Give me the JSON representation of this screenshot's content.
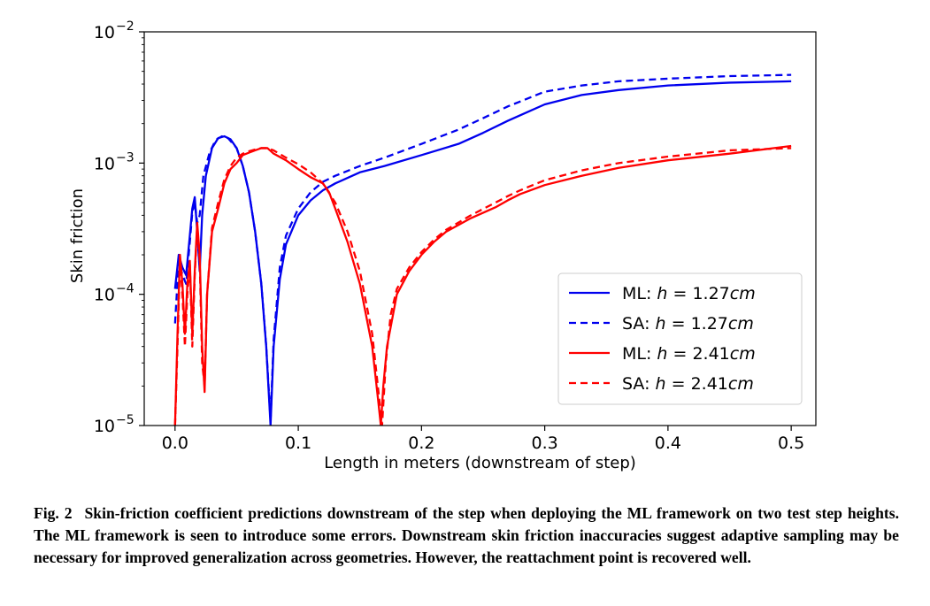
{
  "figure": {
    "caption_label": "Fig. 2",
    "caption_text": "Skin-friction coefficient predictions downstream of the step when deploying the ML framework on two test step heights. The ML framework is seen to introduce some errors. Downstream skin friction inaccuracies suggest adaptive sampling may be necessary for improved generalization across geometries. However, the reattachment point is recovered well."
  },
  "chart_data": {
    "type": "line",
    "title": "",
    "xlabel": "Length in meters (downstream of step)",
    "ylabel": "Skin friction",
    "xlim": [
      -0.025,
      0.52
    ],
    "ylim": [
      1e-05,
      0.01
    ],
    "yscale": "log",
    "x_ticks": [
      {
        "value": 0.0,
        "label": "0.0"
      },
      {
        "value": 0.1,
        "label": "0.1"
      },
      {
        "value": 0.2,
        "label": "0.2"
      },
      {
        "value": 0.3,
        "label": "0.3"
      },
      {
        "value": 0.4,
        "label": "0.4"
      },
      {
        "value": 0.5,
        "label": "0.5"
      }
    ],
    "y_ticks": [
      {
        "value": 1e-05,
        "base": "10",
        "exp": "−5"
      },
      {
        "value": 0.0001,
        "base": "10",
        "exp": "−4"
      },
      {
        "value": 0.001,
        "base": "10",
        "exp": "−3"
      },
      {
        "value": 0.01,
        "base": "10",
        "exp": "−2"
      }
    ],
    "grid": false,
    "legend_position": "lower-right",
    "series": [
      {
        "name": "ML: h = 1.27cm",
        "legend_prefix": "ML: ",
        "legend_var": "h",
        "legend_value": " = 1.27",
        "legend_unit": "cm",
        "color": "#0000ee",
        "dash": "solid",
        "points": [
          [
            0.0,
            0.00011
          ],
          [
            0.003,
            0.0002
          ],
          [
            0.006,
            0.00016
          ],
          [
            0.009,
            0.00014
          ],
          [
            0.012,
            0.00028
          ],
          [
            0.014,
            0.00045
          ],
          [
            0.016,
            0.00055
          ],
          [
            0.018,
            0.0003
          ],
          [
            0.02,
            0.00015
          ],
          [
            0.022,
            0.0004
          ],
          [
            0.025,
            0.0008
          ],
          [
            0.03,
            0.0013
          ],
          [
            0.035,
            0.00155
          ],
          [
            0.04,
            0.0016
          ],
          [
            0.045,
            0.00152
          ],
          [
            0.05,
            0.0013
          ],
          [
            0.055,
            0.00095
          ],
          [
            0.06,
            0.0006
          ],
          [
            0.065,
            0.0003
          ],
          [
            0.07,
            0.00012
          ],
          [
            0.074,
            4e-05
          ],
          [
            0.0775,
            1e-05
          ],
          [
            0.08,
            4e-05
          ],
          [
            0.085,
            0.00013
          ],
          [
            0.09,
            0.00024
          ],
          [
            0.1,
            0.0004
          ],
          [
            0.11,
            0.00052
          ],
          [
            0.12,
            0.00062
          ],
          [
            0.13,
            0.0007
          ],
          [
            0.15,
            0.00085
          ],
          [
            0.17,
            0.00095
          ],
          [
            0.2,
            0.00115
          ],
          [
            0.23,
            0.0014
          ],
          [
            0.25,
            0.0017
          ],
          [
            0.27,
            0.0021
          ],
          [
            0.3,
            0.0028
          ],
          [
            0.33,
            0.0033
          ],
          [
            0.36,
            0.0036
          ],
          [
            0.4,
            0.0039
          ],
          [
            0.45,
            0.0041
          ],
          [
            0.5,
            0.0042
          ]
        ]
      },
      {
        "name": "SA: h = 1.27cm",
        "legend_prefix": "SA: ",
        "legend_var": "h",
        "legend_value": " = 1.27",
        "legend_unit": "cm",
        "color": "#0000ee",
        "dash": "dashed",
        "points": [
          [
            0.0,
            6e-05
          ],
          [
            0.003,
            0.00018
          ],
          [
            0.006,
            0.00014
          ],
          [
            0.009,
            0.00012
          ],
          [
            0.012,
            0.00025
          ],
          [
            0.014,
            0.00042
          ],
          [
            0.016,
            0.0005
          ],
          [
            0.018,
            0.00035
          ],
          [
            0.02,
            0.0004
          ],
          [
            0.023,
            0.0008
          ],
          [
            0.028,
            0.0012
          ],
          [
            0.033,
            0.0015
          ],
          [
            0.038,
            0.0016
          ],
          [
            0.043,
            0.00155
          ],
          [
            0.05,
            0.0013
          ],
          [
            0.055,
            0.00095
          ],
          [
            0.06,
            0.0006
          ],
          [
            0.065,
            0.0003
          ],
          [
            0.07,
            0.00012
          ],
          [
            0.074,
            4e-05
          ],
          [
            0.0775,
            1.1e-05
          ],
          [
            0.08,
            4.5e-05
          ],
          [
            0.085,
            0.00016
          ],
          [
            0.09,
            0.00028
          ],
          [
            0.1,
            0.00045
          ],
          [
            0.11,
            0.0006
          ],
          [
            0.12,
            0.00072
          ],
          [
            0.13,
            0.0008
          ],
          [
            0.15,
            0.00095
          ],
          [
            0.17,
            0.0011
          ],
          [
            0.2,
            0.0014
          ],
          [
            0.23,
            0.0018
          ],
          [
            0.25,
            0.0022
          ],
          [
            0.27,
            0.0027
          ],
          [
            0.3,
            0.0035
          ],
          [
            0.33,
            0.0039
          ],
          [
            0.36,
            0.0042
          ],
          [
            0.4,
            0.0044
          ],
          [
            0.45,
            0.0046
          ],
          [
            0.5,
            0.0047
          ]
        ]
      },
      {
        "name": "ML: h = 2.41cm",
        "legend_prefix": "ML: ",
        "legend_var": "h",
        "legend_value": " = 2.41",
        "legend_unit": "cm",
        "color": "#ff0000",
        "dash": "solid",
        "points": [
          [
            0.0,
            1e-05
          ],
          [
            0.002,
            5e-05
          ],
          [
            0.004,
            0.0002
          ],
          [
            0.006,
            0.00012
          ],
          [
            0.008,
            5e-05
          ],
          [
            0.01,
            0.00012
          ],
          [
            0.012,
            0.00018
          ],
          [
            0.014,
            5e-05
          ],
          [
            0.016,
            0.00015
          ],
          [
            0.018,
            0.00035
          ],
          [
            0.02,
            0.0002
          ],
          [
            0.022,
            4e-05
          ],
          [
            0.024,
            1.8e-05
          ],
          [
            0.026,
            0.0001
          ],
          [
            0.03,
            0.0003
          ],
          [
            0.035,
            0.00045
          ],
          [
            0.04,
            0.0007
          ],
          [
            0.045,
            0.0009
          ],
          [
            0.05,
            0.001
          ],
          [
            0.055,
            0.00115
          ],
          [
            0.06,
            0.0012
          ],
          [
            0.065,
            0.00125
          ],
          [
            0.07,
            0.0013
          ],
          [
            0.075,
            0.0013
          ],
          [
            0.08,
            0.00118
          ],
          [
            0.09,
            0.00105
          ],
          [
            0.1,
            0.0009
          ],
          [
            0.11,
            0.00078
          ],
          [
            0.12,
            0.0007
          ],
          [
            0.125,
            0.0006
          ],
          [
            0.13,
            0.00045
          ],
          [
            0.14,
            0.00025
          ],
          [
            0.15,
            0.00012
          ],
          [
            0.16,
            4e-05
          ],
          [
            0.165,
            1.5e-05
          ],
          [
            0.167,
            1e-05
          ],
          [
            0.169,
            2e-05
          ],
          [
            0.172,
            4e-05
          ],
          [
            0.18,
            0.0001
          ],
          [
            0.19,
            0.00015
          ],
          [
            0.2,
            0.0002
          ],
          [
            0.21,
            0.00025
          ],
          [
            0.22,
            0.0003
          ],
          [
            0.24,
            0.00038
          ],
          [
            0.26,
            0.00046
          ],
          [
            0.27,
            0.00052
          ],
          [
            0.28,
            0.00058
          ],
          [
            0.3,
            0.00068
          ],
          [
            0.33,
            0.0008
          ],
          [
            0.36,
            0.00092
          ],
          [
            0.4,
            0.00105
          ],
          [
            0.45,
            0.00118
          ],
          [
            0.5,
            0.00135
          ]
        ]
      },
      {
        "name": "SA: h = 2.41cm",
        "legend_prefix": "SA: ",
        "legend_var": "h",
        "legend_value": " = 2.41",
        "legend_unit": "cm",
        "color": "#ff0000",
        "dash": "dashed",
        "points": [
          [
            0.0,
            1e-05
          ],
          [
            0.002,
            4e-05
          ],
          [
            0.004,
            0.00018
          ],
          [
            0.006,
            0.0001
          ],
          [
            0.008,
            4e-05
          ],
          [
            0.01,
            0.0001
          ],
          [
            0.012,
            0.00017
          ],
          [
            0.014,
            4e-05
          ],
          [
            0.016,
            0.00014
          ],
          [
            0.018,
            0.00033
          ],
          [
            0.02,
            0.00018
          ],
          [
            0.022,
            3e-05
          ],
          [
            0.024,
            2e-05
          ],
          [
            0.026,
            0.0001
          ],
          [
            0.03,
            0.00032
          ],
          [
            0.035,
            0.0005
          ],
          [
            0.04,
            0.00075
          ],
          [
            0.045,
            0.00095
          ],
          [
            0.05,
            0.0011
          ],
          [
            0.055,
            0.00118
          ],
          [
            0.06,
            0.00123
          ],
          [
            0.065,
            0.00127
          ],
          [
            0.07,
            0.0013
          ],
          [
            0.075,
            0.0013
          ],
          [
            0.08,
            0.00125
          ],
          [
            0.09,
            0.0011
          ],
          [
            0.1,
            0.00098
          ],
          [
            0.11,
            0.00085
          ],
          [
            0.12,
            0.0007
          ],
          [
            0.13,
            0.0005
          ],
          [
            0.14,
            0.0003
          ],
          [
            0.15,
            0.00015
          ],
          [
            0.16,
            5e-05
          ],
          [
            0.166,
            1.5e-05
          ],
          [
            0.168,
            1e-05
          ],
          [
            0.171,
            3e-05
          ],
          [
            0.175,
            7e-05
          ],
          [
            0.18,
            0.00011
          ],
          [
            0.19,
            0.00016
          ],
          [
            0.2,
            0.00021
          ],
          [
            0.21,
            0.00026
          ],
          [
            0.22,
            0.00031
          ],
          [
            0.24,
            0.0004
          ],
          [
            0.26,
            0.0005
          ],
          [
            0.27,
            0.00056
          ],
          [
            0.28,
            0.00062
          ],
          [
            0.3,
            0.00074
          ],
          [
            0.33,
            0.00088
          ],
          [
            0.36,
            0.001
          ],
          [
            0.4,
            0.00112
          ],
          [
            0.45,
            0.00125
          ],
          [
            0.5,
            0.0013
          ]
        ]
      }
    ]
  }
}
